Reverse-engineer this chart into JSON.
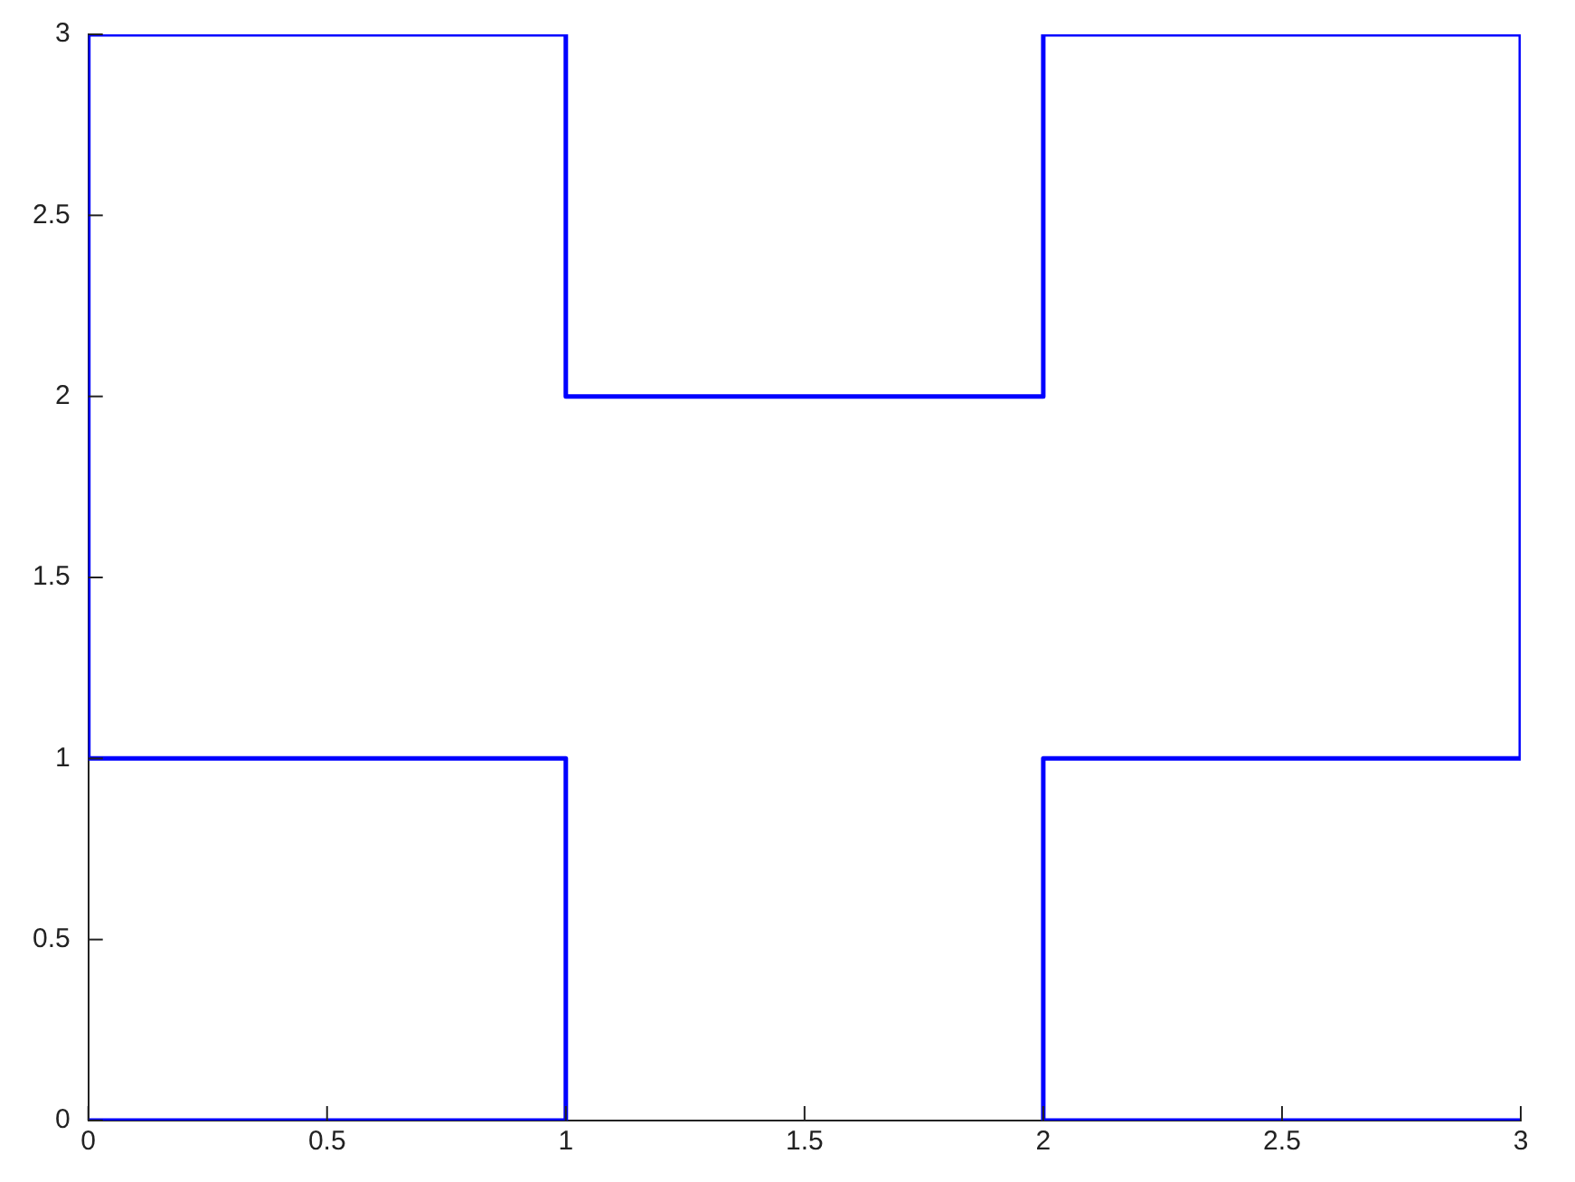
{
  "chart_data": {
    "type": "line",
    "x": [
      0,
      1,
      1,
      0,
      0,
      1,
      1,
      2,
      2,
      3,
      3,
      2,
      2,
      3
    ],
    "series": [
      {
        "color": "#0000ff",
        "values": [
          0,
          0,
          1,
          1,
          3,
          3,
          2,
          2,
          3,
          3,
          1,
          1,
          0,
          0
        ]
      }
    ],
    "xlim": [
      0,
      3
    ],
    "xticks": [
      0,
      0.5,
      1,
      1.5,
      2,
      2.5,
      3
    ],
    "ylim": [
      0,
      3
    ],
    "yticks": [
      0,
      0.5,
      1,
      1.5,
      2,
      2.5,
      3
    ],
    "grid": false,
    "legend": false,
    "marker": "none",
    "line_style": "solid"
  }
}
